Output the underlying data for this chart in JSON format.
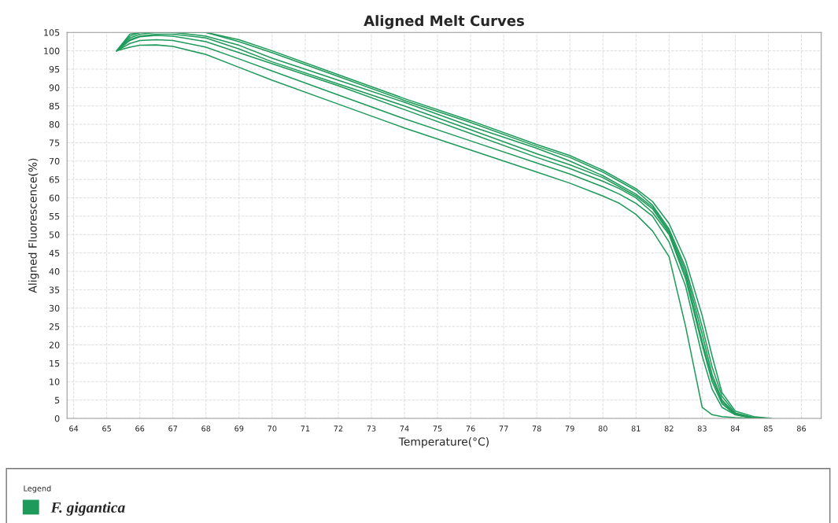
{
  "chart_data": {
    "type": "line",
    "title": "Aligned Melt Curves",
    "xlabel": "Temperature(°C)",
    "ylabel": "Aligned Fluorescence(%)",
    "legend_title": "Legend",
    "series": [
      {
        "name": "F. gigantica",
        "color": "#1e9a5a",
        "x": [
          65.3,
          65.7,
          66,
          66.5,
          67,
          68,
          69,
          70,
          72,
          74,
          76,
          78,
          79,
          80,
          80.5,
          81,
          81.5,
          82,
          82.5,
          83,
          83.3,
          83.6,
          84,
          84.3,
          84.6
        ],
        "values": [
          100,
          101,
          101.5,
          101.6,
          101.2,
          99,
          95.5,
          92,
          85.5,
          79,
          73,
          67,
          64,
          60.5,
          58.5,
          55.5,
          51,
          44,
          25,
          3,
          1,
          0.5,
          0.2,
          0.1,
          0
        ]
      },
      {
        "color": "#1e9a5a",
        "x": [
          65.3,
          65.7,
          66,
          66.5,
          67,
          68,
          69,
          70,
          72,
          74,
          76,
          78,
          79,
          80,
          80.5,
          81,
          81.5,
          82,
          82.5,
          83,
          83.3,
          83.6,
          84,
          84.4,
          84.7
        ],
        "values": [
          100,
          102,
          102.8,
          103,
          102.8,
          101,
          97.8,
          94.5,
          88,
          81.5,
          75.5,
          69.5,
          66.5,
          63,
          61,
          58.5,
          55,
          48,
          36,
          17,
          8,
          3,
          1,
          0.3,
          0
        ]
      },
      {
        "color": "#1e9a5a",
        "x": [
          65.3,
          65.7,
          66,
          66.5,
          67,
          68,
          69,
          70,
          72,
          74,
          76,
          78,
          79,
          80,
          80.5,
          81,
          81.5,
          82,
          82.5,
          83,
          83.3,
          83.6,
          84,
          84.4,
          84.8
        ],
        "values": [
          100,
          102.8,
          103.8,
          104.2,
          104,
          102.5,
          99.5,
          96.5,
          90.5,
          84,
          77.5,
          71,
          68,
          64.5,
          62.5,
          60,
          56,
          50,
          38,
          20,
          10,
          4,
          1,
          0.3,
          0
        ]
      },
      {
        "color": "#1e9a5a",
        "x": [
          65.3,
          65.7,
          66,
          66.5,
          67,
          68,
          69,
          70,
          72,
          74,
          76,
          78,
          79,
          80,
          80.5,
          81,
          81.5,
          82,
          82.5,
          83,
          83.3,
          83.6,
          84,
          84.5,
          84.9
        ],
        "values": [
          100,
          103.5,
          104.5,
          105,
          105,
          104,
          101.5,
          98,
          92,
          86,
          79.5,
          73.5,
          70,
          66,
          63.5,
          61,
          57.5,
          51,
          40,
          23,
          12,
          5,
          1.2,
          0.3,
          0
        ]
      },
      {
        "color": "#1e9a5a",
        "x": [
          65.3,
          65.7,
          66,
          66.5,
          67,
          68,
          69,
          70,
          72,
          74,
          76,
          78,
          79,
          80,
          80.5,
          81,
          81.5,
          82,
          82.5,
          83,
          83.3,
          83.6,
          84,
          84.5,
          85
        ],
        "values": [
          100,
          104,
          105,
          105,
          105,
          105,
          102.5,
          99.5,
          93,
          86.5,
          80.5,
          74,
          71,
          67,
          64.5,
          62,
          58,
          51.5,
          41,
          25,
          14,
          6,
          1.5,
          0.3,
          0
        ]
      },
      {
        "color": "#1e9a5a",
        "x": [
          65.3,
          65.7,
          66,
          66.5,
          67,
          68,
          69,
          70,
          72,
          74,
          76,
          78,
          79,
          80,
          80.5,
          81,
          81.5,
          82,
          82.5,
          83,
          83.3,
          83.6,
          84,
          84.6,
          85.1
        ],
        "values": [
          100,
          104.5,
          105,
          105,
          105,
          105,
          103,
          100,
          93.5,
          87,
          81,
          74.5,
          71.5,
          67.5,
          65,
          62.5,
          59,
          53,
          43,
          28,
          17,
          7,
          2,
          0.4,
          0
        ]
      },
      {
        "color": "#1e9a5a",
        "x": [
          65.3,
          65.7,
          66,
          66.5,
          67,
          68,
          69,
          70,
          72,
          74,
          76,
          78,
          79,
          80,
          80.5,
          81,
          81.5,
          82,
          82.5,
          83,
          83.3,
          83.6,
          84,
          84.5,
          84.95
        ],
        "values": [
          100,
          103,
          104,
          104.5,
          104.5,
          103.5,
          100.5,
          97,
          91,
          85,
          78.5,
          72,
          69,
          65.5,
          63,
          60.5,
          57,
          50.5,
          39,
          21,
          11,
          4.5,
          1.2,
          0.3,
          0
        ]
      }
    ],
    "xlim": [
      63.8,
      86.6
    ],
    "xticks": [
      64,
      65,
      66,
      67,
      68,
      69,
      70,
      71,
      72,
      73,
      74,
      75,
      76,
      77,
      78,
      79,
      80,
      81,
      82,
      83,
      84,
      85,
      86
    ],
    "ylim": [
      0,
      105
    ],
    "yticks": [
      0,
      5,
      10,
      15,
      20,
      25,
      30,
      35,
      40,
      45,
      50,
      55,
      60,
      65,
      70,
      75,
      80,
      85,
      90,
      95,
      100,
      105
    ],
    "grid": true,
    "legend": "bottom",
    "line_style": "solid",
    "marker": "none"
  }
}
